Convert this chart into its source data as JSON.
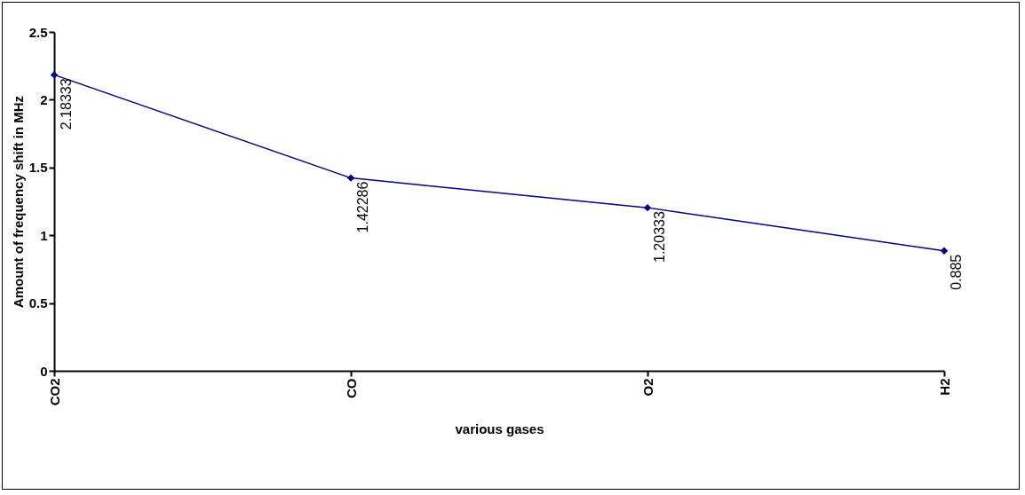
{
  "chart_data": {
    "type": "line",
    "xlabel": "various gases",
    "ylabel": "Amount of frequency shift in MHz",
    "categories": [
      "CO2",
      "CO",
      "O2",
      "H2"
    ],
    "series": [
      {
        "color": "#000080",
        "values": [
          2.18333,
          1.42286,
          1.20333,
          0.885
        ]
      }
    ],
    "ylim": [
      0,
      2.5
    ],
    "yticks": [
      0,
      0.5,
      1,
      1.5,
      2,
      2.5
    ],
    "grid": false,
    "legend": false,
    "marker": "diamond",
    "line_style": "solid",
    "data_labels": true
  }
}
